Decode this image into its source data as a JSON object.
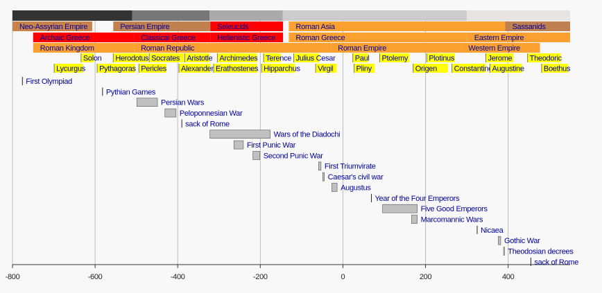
{
  "chart_data": {
    "type": "timeline",
    "xlim": [
      -800,
      550
    ],
    "xticks": [
      -800,
      -600,
      -400,
      -200,
      0,
      200,
      400
    ],
    "grid": true,
    "event_color": "#c0c0c0",
    "bands": [
      {
        "items": [
          {
            "start": -800,
            "end": -510,
            "color": "#333333"
          },
          {
            "start": -510,
            "end": -323,
            "color": "#777777"
          },
          {
            "start": -323,
            "end": -146,
            "color": "#aaaaaa"
          },
          {
            "start": -146,
            "end": 300,
            "color": "#cccccc"
          },
          {
            "start": 300,
            "end": 550,
            "color": "#e8e4e4"
          }
        ]
      },
      {
        "items": [
          {
            "label": "Neo-Assyrian Empire",
            "start": -800,
            "end": -607,
            "color": "#c8824a"
          },
          {
            "label": "Persian Empire",
            "start": -556,
            "end": -321,
            "color": "#c08050"
          },
          {
            "label": "Seleucids",
            "start": -321,
            "end": -145,
            "color": "#ff0000"
          },
          {
            "label": "Roman Asia",
            "start": -131,
            "end": 393,
            "color": "#f9a030"
          },
          {
            "label": "Sassanids",
            "start": 393,
            "end": 550,
            "color": "#c08050"
          }
        ]
      },
      {
        "items": [
          {
            "label": "Archaic Greece",
            "start": -750,
            "end": -506,
            "color": "#ff0000"
          },
          {
            "label": "Classical Greece",
            "start": -506,
            "end": -321,
            "color": "#ff0000"
          },
          {
            "label": "Hellenistic Greece",
            "start": -321,
            "end": -145,
            "color": "#ff0000"
          },
          {
            "label": "Roman Greece",
            "start": -131,
            "end": 301,
            "color": "#f9a030"
          },
          {
            "label": "Eastern Empire",
            "start": 301,
            "end": 550,
            "color": "#f9a030"
          }
        ]
      },
      {
        "items": [
          {
            "label": "Roman Kingdom",
            "start": -750,
            "end": -506,
            "color": "#f9a030"
          },
          {
            "label": "Roman Republic",
            "start": -506,
            "end": -29,
            "color": "#f9a030"
          },
          {
            "label": "Roman Empire",
            "start": -29,
            "end": 287,
            "color": "#f9a030"
          },
          {
            "label": "Western Empire",
            "start": 287,
            "end": 477,
            "color": "#f9a030"
          }
        ]
      },
      {
        "items": [
          {
            "label": "Solon",
            "start": -634,
            "end": -603,
            "color": "#ffff00"
          },
          {
            "label": "Herodotus",
            "start": -556,
            "end": -472,
            "color": "#ffff00"
          },
          {
            "label": "Socrates",
            "start": -469,
            "end": -385,
            "color": "#ffff00"
          },
          {
            "label": "Aristotle",
            "start": -383,
            "end": -323,
            "color": "#ffff00"
          },
          {
            "label": "Archimedes",
            "start": -304,
            "end": -208,
            "color": "#ffff00"
          },
          {
            "label": "Terence",
            "start": -192,
            "end": -150,
            "color": "#ffff00"
          },
          {
            "label": "Julius Cesar",
            "start": -119,
            "end": -57,
            "color": "#ffff00"
          },
          {
            "label": "Paul",
            "start": 24,
            "end": 61,
            "color": "#ffff00"
          },
          {
            "label": "Ptolemy",
            "start": 89,
            "end": 161,
            "color": "#ffff00"
          },
          {
            "label": "Plotinus",
            "start": 203,
            "end": 271,
            "color": "#ffff00"
          },
          {
            "label": "Jerome",
            "start": 346,
            "end": 413,
            "color": "#ffff00"
          },
          {
            "label": "Theodoric",
            "start": 447,
            "end": 528,
            "color": "#ffff00"
          }
        ]
      },
      {
        "items": [
          {
            "label": "Lycurgus",
            "start": -699,
            "end": -629,
            "color": "#ffff00"
          },
          {
            "label": "Pythagoras",
            "start": -595,
            "end": -503,
            "color": "#ffff00"
          },
          {
            "label": "Pericles",
            "start": -494,
            "end": -427,
            "color": "#ffff00"
          },
          {
            "label": "Alexander",
            "start": -397,
            "end": -321,
            "color": "#ffff00"
          },
          {
            "label": "Erathostenes",
            "start": -313,
            "end": -208,
            "color": "#ffff00"
          },
          {
            "label": "Hipparchus",
            "start": -197,
            "end": -116,
            "color": "#ffff00"
          },
          {
            "label": "Virgil",
            "start": -66,
            "end": -15,
            "color": "#ffff00"
          },
          {
            "label": "Pliny",
            "start": 27,
            "end": 77,
            "color": "#ffff00"
          },
          {
            "label": "Origen",
            "start": 170,
            "end": 254,
            "color": "#ffff00"
          },
          {
            "label": "Constantine",
            "start": 264,
            "end": 346,
            "color": "#ffff00"
          },
          {
            "label": "Augustine",
            "start": 356,
            "end": 434,
            "color": "#ffff00"
          },
          {
            "label": "Boethus",
            "start": 481,
            "end": 545,
            "color": "#ffff00"
          }
        ]
      }
    ],
    "events": [
      {
        "label": "First Olympiad",
        "start": -776
      },
      {
        "label": "Pythian Games",
        "start": -582
      },
      {
        "label": "Persian Wars",
        "start": -499,
        "end": -449
      },
      {
        "label": "Peloponnesian War",
        "start": -431,
        "end": -404
      },
      {
        "label": "sack of Rome",
        "start": -390
      },
      {
        "label": "Wars of the Diadochi",
        "start": -322,
        "end": -176
      },
      {
        "label": "First Punic War",
        "start": -264,
        "end": -241
      },
      {
        "label": "Second Punic War",
        "start": -218,
        "end": -201
      },
      {
        "label": "First Triumvirate",
        "start": -59,
        "end": -53
      },
      {
        "label": "Caesar's civil war",
        "start": -49,
        "end": -45
      },
      {
        "label": "Augustus",
        "start": -27,
        "end": -14
      },
      {
        "label": "Year of the Four Emperors",
        "start": 69
      },
      {
        "label": "Five Good Emperors",
        "start": 96,
        "end": 180
      },
      {
        "label": "Marcomannic Wars",
        "start": 166,
        "end": 180
      },
      {
        "label": "Nicaea",
        "start": 325
      },
      {
        "label": "Gothic War",
        "start": 376,
        "end": 382
      },
      {
        "label": "Theodosian decrees",
        "start": 389,
        "end": 391
      },
      {
        "label": "sack of Rome",
        "start": 455
      }
    ]
  }
}
